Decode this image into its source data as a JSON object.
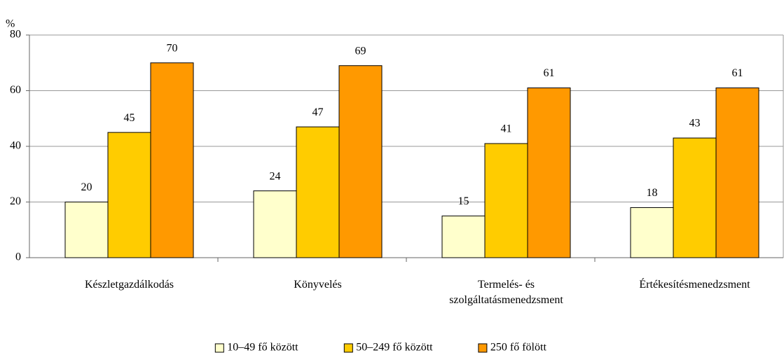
{
  "chart_data": {
    "type": "bar",
    "y_label": "%",
    "categories": [
      "Készletgazdálkodás",
      "Könyvelés",
      "Termelés- és szolgáltatásmenedzsment",
      "Értékesítésmenedzsment"
    ],
    "series": [
      {
        "name": "10–49 fő között",
        "color": "#ffffcc",
        "values": [
          20,
          24,
          15,
          18
        ]
      },
      {
        "name": "50–249 fő között",
        "color": "#ffcc00",
        "values": [
          45,
          47,
          41,
          43
        ]
      },
      {
        "name": "250 fő fölött",
        "color": "#ff9900",
        "values": [
          70,
          69,
          61,
          61
        ]
      }
    ],
    "ylim": [
      0,
      80
    ],
    "yticks": [
      0,
      20,
      40,
      60,
      80
    ],
    "grid": true,
    "legend": "bottom"
  }
}
